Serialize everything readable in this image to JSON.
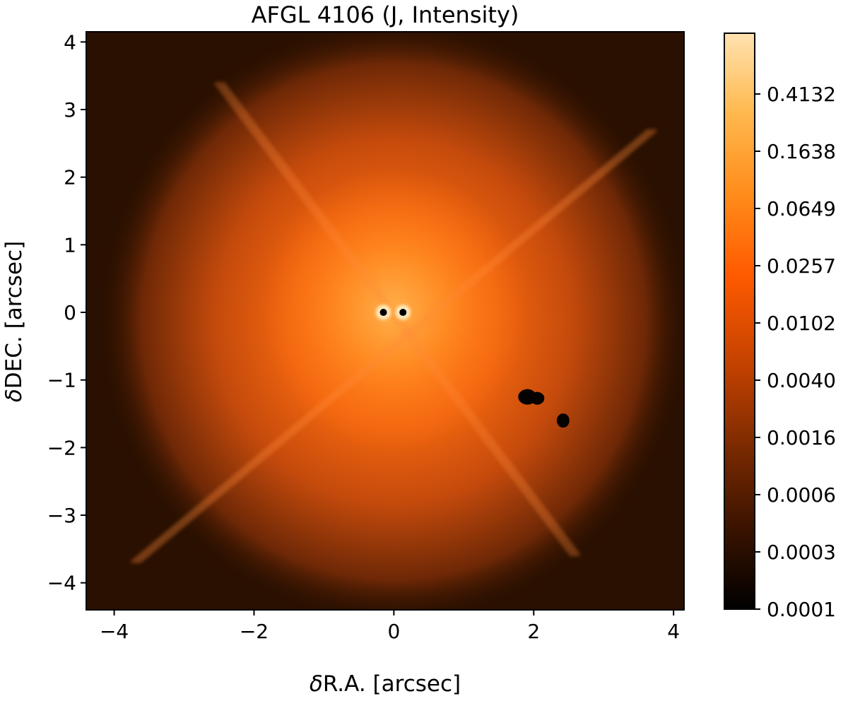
{
  "chart_data": {
    "type": "heatmap",
    "title": "AFGL 4106 (J, Intensity)",
    "xlabel_prefix": "δ",
    "xlabel_text": "R.A. [arcsec]",
    "ylabel_prefix": "δ",
    "ylabel_text": "DEC. [arcsec]",
    "xlim": [
      -4.4,
      4.15
    ],
    "ylim": [
      -4.4,
      4.15
    ],
    "x_ticks": [
      -4,
      -2,
      0,
      2,
      4
    ],
    "y_ticks": [
      4,
      3,
      2,
      1,
      0,
      -1,
      -2,
      -3,
      -4
    ],
    "x_tick_labels": [
      "−4",
      "−2",
      "0",
      "2",
      "4"
    ],
    "y_tick_labels": [
      "4",
      "3",
      "2",
      "1",
      "0",
      "−1",
      "−2",
      "−3",
      "−4"
    ],
    "colorbar": {
      "scale": "log",
      "tick_labels": [
        "0.4132",
        "0.1638",
        "0.0649",
        "0.0257",
        "0.0102",
        "0.0040",
        "0.0016",
        "0.0006",
        "0.0003",
        "0.0001"
      ],
      "colormap": [
        "#000000",
        "#3a1300",
        "#7a2a00",
        "#c24100",
        "#ff5a00",
        "#ff8c1a",
        "#ffb84d",
        "#ffe2b0"
      ]
    },
    "image": {
      "background_color": "#2a1000",
      "halo_color": "#c64a0c",
      "core_color": "#ff7a1a",
      "stars": [
        {
          "x": -0.15,
          "y": 0.0
        },
        {
          "x": 0.13,
          "y": 0.0
        }
      ],
      "dark_blobs": [
        {
          "x": 1.97,
          "y": -1.25
        },
        {
          "x": 2.42,
          "y": -1.6
        }
      ],
      "spikes": [
        {
          "x1": -2.5,
          "y1": 3.4,
          "x2": 2.6,
          "y2": -3.6
        },
        {
          "x1": 3.7,
          "y1": 2.7,
          "x2": -3.7,
          "y2": -3.7
        }
      ]
    }
  }
}
